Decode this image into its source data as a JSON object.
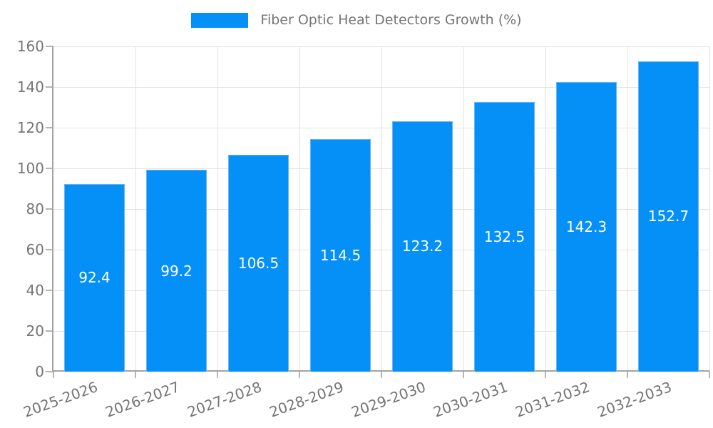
{
  "legend": {
    "label": "Fiber Optic Heat Detectors Growth (%)"
  },
  "chart_data": {
    "type": "bar",
    "title": "",
    "series_name": "Fiber Optic Heat Detectors Growth (%)",
    "categories": [
      "2025-2026",
      "2026-2027",
      "2027-2028",
      "2028-2029",
      "2029-2030",
      "2030-2031",
      "2031-2032",
      "2032-2033"
    ],
    "values": [
      92.4,
      99.2,
      106.5,
      114.5,
      123.2,
      132.5,
      142.3,
      152.7
    ],
    "value_labels": [
      "92.4",
      "99.2",
      "106.5",
      "114.5",
      "123.2",
      "132.5",
      "142.3",
      "152.7"
    ],
    "xlabel": "",
    "ylabel": "",
    "ylim": [
      0,
      160
    ],
    "yticks": [
      0,
      20,
      40,
      60,
      80,
      100,
      120,
      140,
      160
    ],
    "grid": true,
    "legend_position": "top",
    "x_tick_rotation_deg": -20
  },
  "colors": {
    "bar_fill": "#0590f8",
    "bar_edge": "#6ab4f0",
    "grid_line": "#e3e3e3",
    "axis_line": "#a3a3a3",
    "tick_mark": "#b5b5b5",
    "tick_text": "#757575",
    "value_label_text": "#ffffff",
    "background": "#ffffff"
  }
}
